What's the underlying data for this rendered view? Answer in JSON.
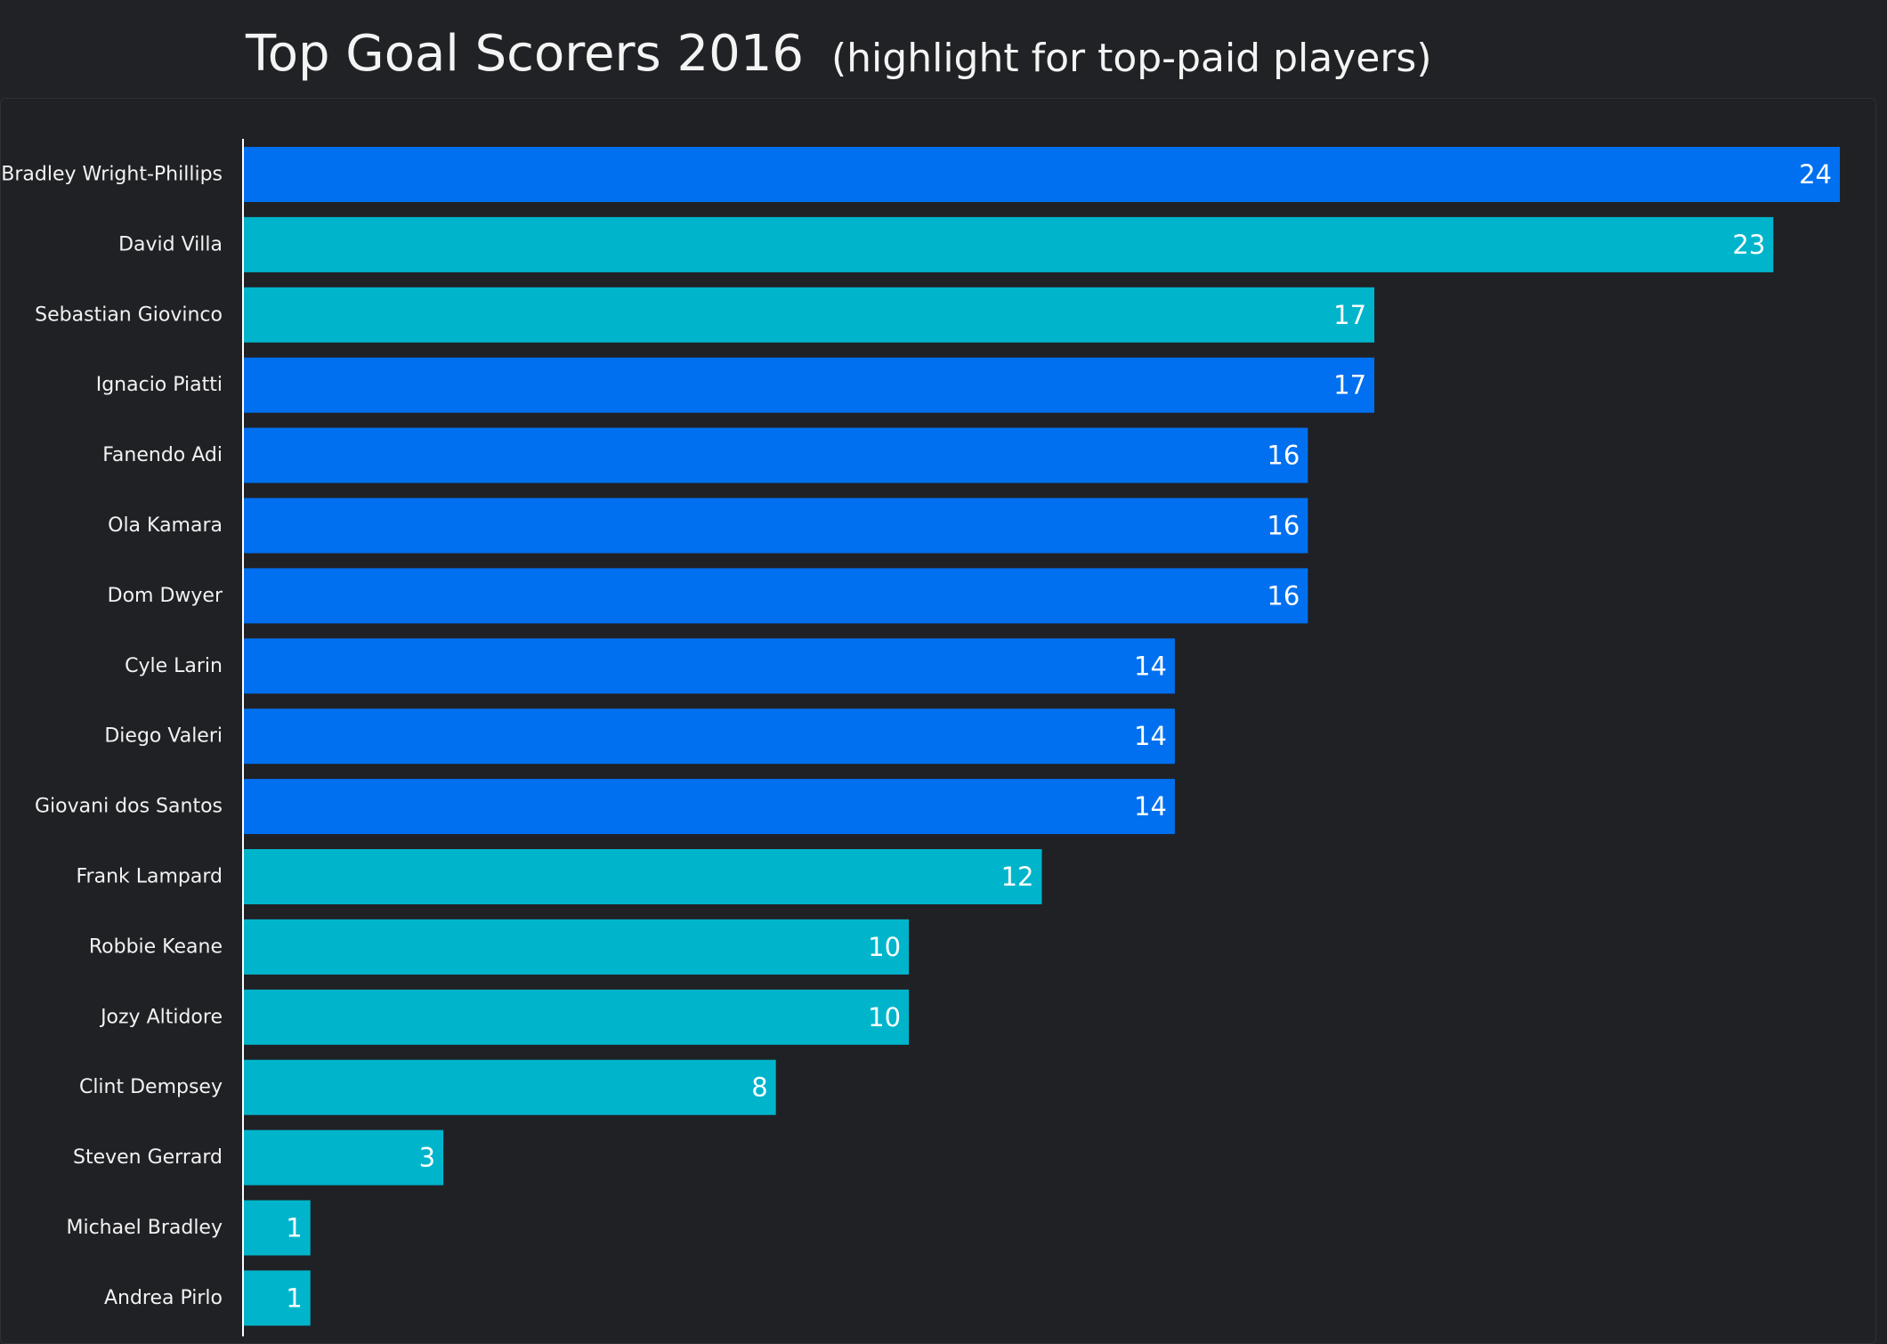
{
  "header": {
    "title": "Top Goal Scorers 2016",
    "subtitle": "(highlight for top-paid players)"
  },
  "colors": {
    "background": "#212225",
    "highlight": "#0070f0",
    "base": "#00b5cb",
    "text": "#f4f4f4",
    "axis": "#ffffff"
  },
  "chart_data": {
    "type": "bar",
    "orientation": "horizontal",
    "title": "Top Goal Scorers 2016",
    "subtitle": "(highlight for top-paid players)",
    "xlabel": "",
    "ylabel": "",
    "xlim": [
      0,
      24
    ],
    "grid": false,
    "legend": "none",
    "categories": [
      "Bradley Wright-Phillips",
      "David Villa",
      "Sebastian Giovinco",
      "Ignacio Piatti",
      "Fanendo Adi",
      "Ola Kamara",
      "Dom Dwyer",
      "Cyle Larin",
      "Diego Valeri",
      "Giovani dos Santos",
      "Frank Lampard",
      "Robbie Keane",
      "Jozy Altidore",
      "Clint Dempsey",
      "Steven Gerrard",
      "Michael Bradley",
      "Andrea Pirlo"
    ],
    "values": [
      24,
      23,
      17,
      17,
      16,
      16,
      16,
      14,
      14,
      14,
      12,
      10,
      10,
      8,
      3,
      1,
      1
    ],
    "highlight": [
      true,
      false,
      false,
      true,
      true,
      true,
      true,
      true,
      true,
      true,
      false,
      false,
      false,
      false,
      false,
      false,
      false
    ]
  }
}
